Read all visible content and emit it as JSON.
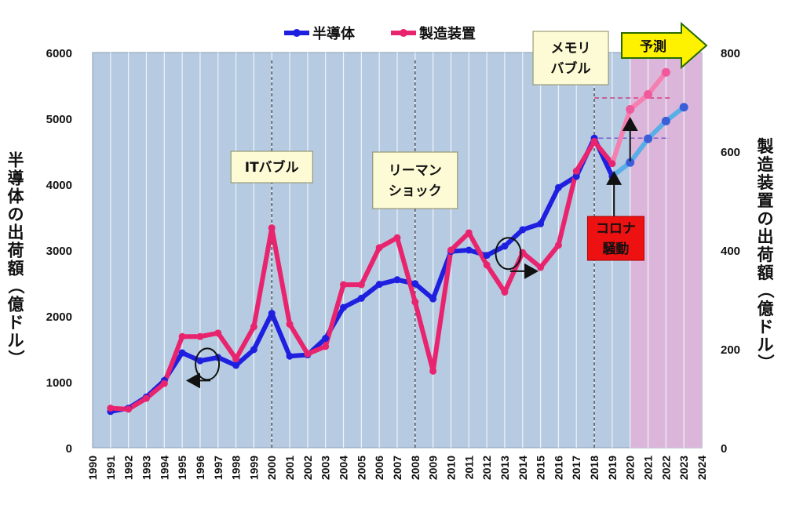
{
  "chart_data": {
    "type": "line",
    "x": [
      1991,
      1992,
      1993,
      1994,
      1995,
      1996,
      1997,
      1998,
      1999,
      2000,
      2001,
      2002,
      2003,
      2004,
      2005,
      2006,
      2007,
      2008,
      2009,
      2010,
      2011,
      2012,
      2013,
      2014,
      2015,
      2016,
      2017,
      2018,
      2019,
      2020,
      2021,
      2022,
      2023
    ],
    "x_ticks": [
      "1990",
      "1991",
      "1992",
      "1993",
      "1994",
      "1995",
      "1996",
      "1997",
      "1998",
      "1999",
      "2000",
      "2001",
      "2002",
      "2003",
      "2004",
      "2005",
      "2006",
      "2007",
      "2008",
      "2009",
      "2010",
      "2011",
      "2012",
      "2013",
      "2014",
      "2015",
      "2016",
      "2017",
      "2018",
      "2019",
      "2020",
      "2021",
      "2022",
      "2023",
      "2024"
    ],
    "xlim": [
      1990,
      2024
    ],
    "y_left": {
      "label": "半導体の出荷額（億ドル）",
      "lim": [
        0,
        6000
      ],
      "ticks": [
        "0",
        "1000",
        "2000",
        "3000",
        "4000",
        "5000",
        "6000"
      ]
    },
    "y_right": {
      "label": "製造装置の出荷額（億ドル）",
      "lim": [
        0,
        800
      ],
      "ticks": [
        "0",
        "200",
        "400",
        "600",
        "800"
      ]
    },
    "series": [
      {
        "name": "半導体",
        "axis": "left",
        "color": "#1f1fe0",
        "forecast_color": "#5aaee8",
        "x": [
          1991,
          1992,
          1993,
          1994,
          1995,
          1996,
          1997,
          1998,
          1999,
          2000,
          2001,
          2002,
          2003,
          2004,
          2005,
          2006,
          2007,
          2008,
          2009,
          2010,
          2011,
          2012,
          2013,
          2014,
          2015,
          2016,
          2017,
          2018,
          2019
        ],
        "values": [
          550,
          600,
          770,
          1020,
          1440,
          1320,
          1370,
          1250,
          1490,
          2040,
          1390,
          1410,
          1660,
          2130,
          2270,
          2480,
          2550,
          2490,
          2260,
          2980,
          3000,
          2920,
          3060,
          3310,
          3400,
          3950,
          4120,
          4700,
          4120
        ],
        "forecast_x": [
          2019,
          2020,
          2021,
          2022,
          2023
        ],
        "forecast_values": [
          4120,
          4330,
          4690,
          4960,
          5170
        ]
      },
      {
        "name": "製造装置",
        "axis": "right",
        "color": "#e8246e",
        "forecast_color": "#f47fb0",
        "x": [
          1991,
          1992,
          1993,
          1994,
          1995,
          1996,
          1997,
          1998,
          1999,
          2000,
          2001,
          2002,
          2003,
          2004,
          2005,
          2006,
          2007,
          2008,
          2009,
          2010,
          2011,
          2012,
          2013,
          2014,
          2015,
          2016,
          2017,
          2018,
          2019
        ],
        "values": [
          80,
          78,
          100,
          130,
          225,
          225,
          232,
          180,
          245,
          445,
          250,
          190,
          205,
          330,
          330,
          405,
          425,
          295,
          155,
          400,
          435,
          370,
          315,
          395,
          365,
          410,
          560,
          620,
          575
        ],
        "forecast_x": [
          2019,
          2020,
          2021,
          2022
        ],
        "forecast_values": [
          575,
          685,
          715,
          760
        ]
      }
    ],
    "legend": {
      "position": "top-center",
      "items": [
        "半導体",
        "製造装置"
      ]
    },
    "annotations": [
      {
        "text_lines": [
          "ITバブル"
        ],
        "x": 2000
      },
      {
        "text_lines": [
          "リーマン",
          "ショック"
        ],
        "x": 2008
      },
      {
        "text_lines": [
          "メモリ",
          "バブル"
        ],
        "x": 2018
      },
      {
        "text_lines": [
          "コロナ",
          "騒動"
        ],
        "x": 2019
      },
      {
        "text_lines": [
          "予測"
        ],
        "x": 2020
      }
    ],
    "forecast_start": 2020,
    "colors": {
      "plot_bg": "#b6cbe2",
      "forecast_bg": "#dcb6da",
      "annotation_box": "#fdfbd5",
      "covid_box": "#ee1111",
      "forecast_arrow": "#fff200"
    }
  }
}
